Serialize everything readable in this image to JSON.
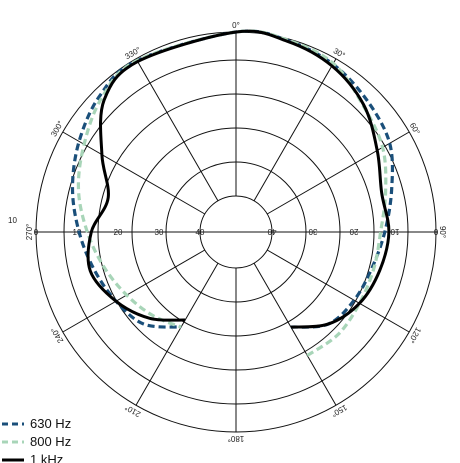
{
  "chart_data": {
    "type": "polar-line",
    "radial_ticks": [
      "0",
      "10",
      "20",
      "30",
      "40"
    ],
    "angle_labels": [
      "0°",
      "30°",
      "60°",
      "90°",
      "120°",
      "150°",
      "180°",
      "210°",
      "240°",
      "270°",
      "300°",
      "330°"
    ],
    "side_label": "10",
    "angles": [
      0,
      15,
      30,
      45,
      60,
      75,
      90,
      105,
      120,
      135,
      150,
      330,
      315,
      300,
      285,
      270,
      255,
      240,
      225,
      210
    ],
    "series": [
      {
        "name": "630 Hz",
        "color": "#1a4f7a",
        "dash": "dashed",
        "values": [
          0,
          0.4,
          1.5,
          3.5,
          5.5,
          9.5,
          12.5,
          14.5,
          15.5,
          17,
          22,
          0.5,
          1.8,
          4.6,
          7.5,
          10.5,
          13,
          15,
          17,
          22
        ]
      },
      {
        "name": "800 Hz",
        "color": "#a8d5b8",
        "dash": "dashed",
        "values": [
          0,
          0.3,
          1.3,
          5,
          7.5,
          11,
          13.5,
          14,
          14,
          13.5,
          14,
          0.5,
          2.5,
          6,
          9,
          12.5,
          15.5,
          18,
          20,
          22
        ]
      },
      {
        "name": "1 kHz",
        "color": "#000000",
        "dash": "solid",
        "values": [
          0,
          0.6,
          2,
          4.8,
          9,
          12,
          11.5,
          12.5,
          14,
          17,
          22,
          0.8,
          3.3,
          11,
          16.5,
          13.5,
          12,
          15,
          19,
          24
        ]
      }
    ],
    "r_range": [
      0,
      40
    ],
    "grid": true,
    "legend_position": "bottom-left"
  }
}
